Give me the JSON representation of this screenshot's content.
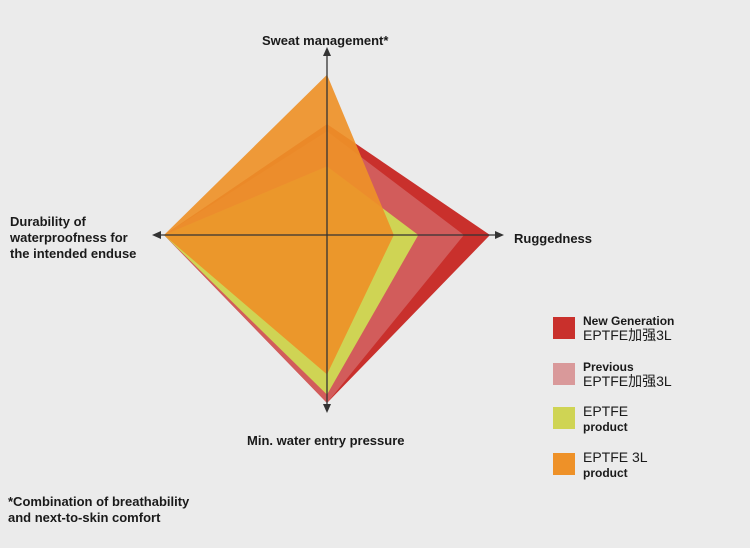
{
  "chart_data": {
    "type": "radar",
    "axes": [
      {
        "id": "top",
        "label": "Sweat management*"
      },
      {
        "id": "right",
        "label": "Ruggedness"
      },
      {
        "id": "bottom",
        "label": "Min. water entry pressure"
      },
      {
        "id": "left",
        "label": "Durability of\nwaterproofness for\nthe intended enduse"
      }
    ],
    "scale_max": 10,
    "series": [
      {
        "name": "New Generation EPTFE加强3L",
        "line1": "New Generation",
        "line2": "EPTFE加强3L",
        "color": "#c9302c",
        "values": {
          "top": 6.3,
          "right": 10,
          "bottom": 10,
          "left": 10
        }
      },
      {
        "name": "Previous EPTFE加强3L",
        "line1": "Previous",
        "line2": "EPTFE加强3L",
        "color": "#d46b6b",
        "values": {
          "top": 5.9,
          "right": 8.4,
          "bottom": 10,
          "left": 10
        }
      },
      {
        "name": "EPTFE product",
        "line1": "EPTFE",
        "line2": "product",
        "color": "#cfd454",
        "values": {
          "top": 3.9,
          "right": 5.6,
          "bottom": 9.5,
          "left": 10
        }
      },
      {
        "name": "EPTFE 3L product",
        "line1": "EPTFE 3L",
        "line2": "product",
        "color": "#ee9128",
        "values": {
          "top": 9.1,
          "right": 4.1,
          "bottom": 8.3,
          "left": 10
        }
      }
    ],
    "footnote": "*Combination of breathability\n and next-to-skin comfort"
  }
}
